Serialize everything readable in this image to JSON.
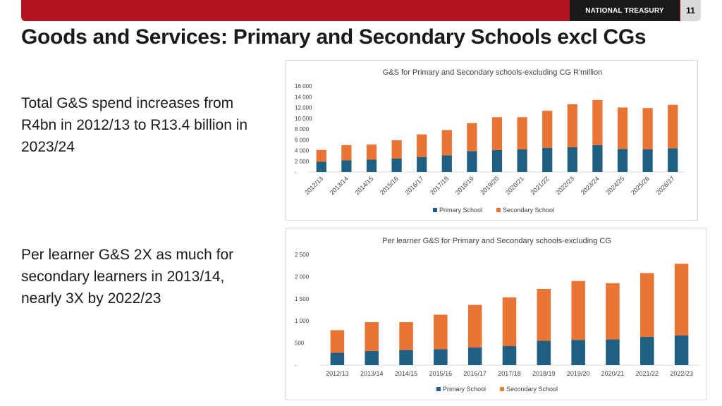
{
  "header": {
    "brand": "NATIONAL TREASURY",
    "page_number": "11"
  },
  "slide": {
    "title": "Goods and Services: Primary and Secondary Schools excl CGs",
    "bullet1": "Total G&S spend increases from R4bn in 2012/13 to R13.4 billion in 2023/24",
    "bullet2": "Per learner G&S 2X as much for secondary learners in 2013/14, nearly 3X by 2022/23"
  },
  "colors": {
    "primary": "#1f5f82",
    "secondary": "#ea7433",
    "brand_red": "#b3151f"
  },
  "chart_data": [
    {
      "type": "bar",
      "stacked": true,
      "title": "G&S for Primary and Secondary schools-excluding CG R'million",
      "categories": [
        "2012/13",
        "2013/14",
        "2014/15",
        "2015/16",
        "2016/17",
        "2017/18",
        "2018/19",
        "2019/20",
        "2020/21",
        "2021/22",
        "2022/23",
        "2023/24",
        "2024/25",
        "2025/26",
        "2026/27"
      ],
      "series": [
        {
          "name": "Primary School",
          "values": [
            1900,
            2200,
            2300,
            2500,
            2800,
            3100,
            3900,
            4100,
            4200,
            4500,
            4600,
            5000,
            4300,
            4200,
            4400
          ]
        },
        {
          "name": "Secondary School",
          "values": [
            2200,
            2800,
            2800,
            3400,
            4200,
            4700,
            5200,
            6100,
            6000,
            6900,
            8000,
            8400,
            7700,
            7700,
            8100
          ]
        }
      ],
      "ylim": [
        0,
        16000
      ],
      "yticks": [
        0,
        2000,
        4000,
        6000,
        8000,
        10000,
        12000,
        14000,
        16000
      ],
      "ytick_labels": [
        "-",
        "2 000",
        "4 000",
        "6 000",
        "8 000",
        "10 000",
        "12 000",
        "14 000",
        "16 000"
      ],
      "xlabel": "",
      "ylabel": "",
      "legend": "bottom",
      "x_labels_rotated": true
    },
    {
      "type": "bar",
      "stacked": true,
      "title": "Per learner G&S for Primary and Secondary schools-excluding CG",
      "categories": [
        "2012/13",
        "2013/14",
        "2014/15",
        "2015/16",
        "2016/17",
        "2017/18",
        "2018/19",
        "2019/20",
        "2020/21",
        "2021/22",
        "2022/23"
      ],
      "series": [
        {
          "name": "Primary School",
          "values": [
            280,
            320,
            340,
            360,
            400,
            430,
            550,
            570,
            580,
            640,
            670
          ]
        },
        {
          "name": "Secondary School",
          "values": [
            510,
            650,
            630,
            780,
            960,
            1100,
            1170,
            1330,
            1270,
            1440,
            1620
          ]
        }
      ],
      "ylim": [
        0,
        2500
      ],
      "yticks": [
        0,
        500,
        1000,
        1500,
        2000,
        2500
      ],
      "ytick_labels": [
        "-",
        "500",
        "1 000",
        "1 500",
        "2 000",
        "2 500"
      ],
      "xlabel": "",
      "ylabel": "",
      "legend": "bottom",
      "x_labels_rotated": false
    }
  ]
}
